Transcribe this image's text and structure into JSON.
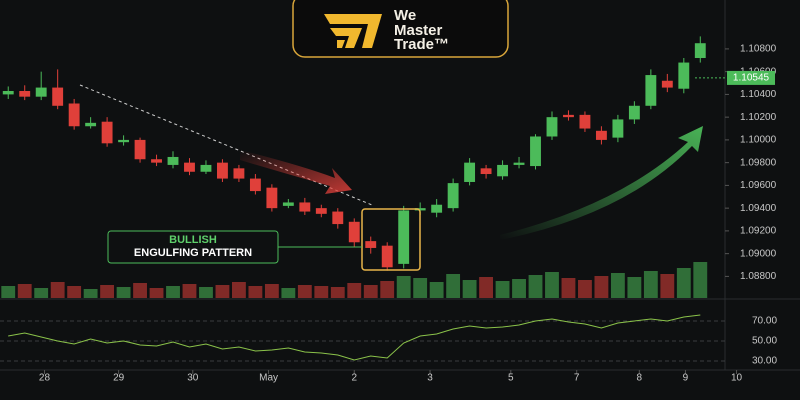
{
  "logo": {
    "lines": [
      "We",
      "Master",
      "Trade™"
    ]
  },
  "annotation": {
    "lines": [
      "BULLISH",
      "ENGULFING PATTERN"
    ]
  },
  "chart_data": {
    "type": "candlestick",
    "up_color": "#4cbb5a",
    "down_color": "#e0403a",
    "series": [
      {
        "name": "open",
        "values": [
          1.104,
          1.1043,
          1.1038,
          1.1046,
          1.1032,
          1.1012,
          1.1016,
          1.0998,
          1.1,
          1.0983,
          1.0978,
          1.098,
          1.0972,
          1.098,
          1.0975,
          1.0966,
          1.0958,
          1.0942,
          1.0945,
          1.094,
          1.0937,
          1.0928,
          1.0911,
          1.0907,
          1.0891,
          1.0938,
          1.0936,
          1.094,
          1.0963,
          1.0975,
          1.0968,
          1.0978,
          1.0977,
          1.1003,
          1.1022,
          1.1022,
          1.1008,
          1.1002,
          1.1018,
          1.103,
          1.1052,
          1.1045,
          1.1072
        ]
      },
      {
        "name": "high",
        "values": [
          1.1047,
          1.1048,
          1.106,
          1.1062,
          1.1036,
          1.102,
          1.102,
          1.1004,
          1.1002,
          1.0987,
          1.099,
          1.0984,
          1.0982,
          1.0983,
          1.0978,
          1.097,
          1.0961,
          1.0948,
          1.0949,
          1.0943,
          1.094,
          1.0931,
          1.0915,
          1.091,
          1.0942,
          1.0945,
          1.0948,
          1.0966,
          1.0984,
          1.0978,
          1.0982,
          1.0985,
          1.1005,
          1.1025,
          1.1026,
          1.1025,
          1.1012,
          1.1022,
          1.1034,
          1.1062,
          1.1058,
          1.1072,
          1.1091
        ]
      },
      {
        "name": "low",
        "values": [
          1.1036,
          1.1035,
          1.1035,
          1.1027,
          1.1009,
          1.101,
          1.0994,
          1.0995,
          1.098,
          1.0977,
          1.0975,
          1.0969,
          1.097,
          1.0963,
          1.0963,
          1.0952,
          1.0937,
          1.094,
          1.0934,
          1.0932,
          1.0922,
          1.0906,
          1.09,
          1.0885,
          1.0887,
          1.0934,
          1.0932,
          1.0937,
          1.096,
          1.0966,
          1.0965,
          1.0975,
          1.0974,
          1.1,
          1.1017,
          1.1007,
          1.0996,
          1.0998,
          1.1014,
          1.1027,
          1.1042,
          1.1041,
          1.1068
        ]
      },
      {
        "name": "close",
        "values": [
          1.1043,
          1.1038,
          1.1046,
          1.103,
          1.1012,
          1.1015,
          1.0997,
          1.1,
          1.0983,
          1.098,
          1.0985,
          1.0972,
          1.0978,
          1.0966,
          1.0966,
          1.0955,
          1.094,
          1.0945,
          1.0937,
          1.0935,
          1.0926,
          1.091,
          1.0905,
          1.0888,
          1.0938,
          1.094,
          1.0943,
          1.0962,
          1.098,
          1.097,
          1.0978,
          1.098,
          1.1003,
          1.102,
          1.102,
          1.101,
          1.1,
          1.1018,
          1.103,
          1.1057,
          1.1046,
          1.1068,
          1.1085
        ]
      }
    ],
    "volume": [
      12,
      14,
      10,
      16,
      12,
      9,
      13,
      11,
      15,
      10,
      12,
      14,
      11,
      13,
      16,
      12,
      14,
      10,
      13,
      12,
      11,
      15,
      13,
      17,
      22,
      20,
      16,
      24,
      18,
      21,
      17,
      19,
      23,
      26,
      20,
      18,
      22,
      25,
      21,
      27,
      24,
      30,
      36
    ],
    "ylim": [
      1.0861,
      1.1123
    ],
    "yticks": [
      {
        "value": 1.108,
        "label": "1.10800"
      },
      {
        "value": 1.106,
        "label": "1.10600"
      },
      {
        "value": 1.104,
        "label": "1.10400"
      },
      {
        "value": 1.102,
        "label": "1.10200"
      },
      {
        "value": 1.1,
        "label": "1.10000"
      },
      {
        "value": 1.098,
        "label": "1.09800"
      },
      {
        "value": 1.096,
        "label": "1.09600"
      },
      {
        "value": 1.094,
        "label": "1.09400"
      },
      {
        "value": 1.092,
        "label": "1.09200"
      },
      {
        "value": 1.09,
        "label": "1.09000"
      },
      {
        "value": 1.088,
        "label": "1.08800"
      }
    ],
    "last_price": 1.10545,
    "xlim": [
      -0.5,
      43.5
    ],
    "xticks": [
      {
        "value": 2.2,
        "label": "28"
      },
      {
        "value": 6.7,
        "label": "29"
      },
      {
        "value": 11.2,
        "label": "30"
      },
      {
        "value": 15.8,
        "label": "May"
      },
      {
        "value": 21,
        "label": "2"
      },
      {
        "value": 25.6,
        "label": "3"
      },
      {
        "value": 30.5,
        "label": "5"
      },
      {
        "value": 34.5,
        "label": "7"
      },
      {
        "value": 38.3,
        "label": "8"
      },
      {
        "value": 41.1,
        "label": "9"
      },
      {
        "value": 44.2,
        "label": "10"
      }
    ],
    "oscillator": {
      "color": "#8bc34a",
      "values": [
        55,
        58,
        54,
        50,
        47,
        52,
        48,
        50,
        46,
        45,
        49,
        44,
        47,
        42,
        44,
        40,
        41,
        43,
        39,
        38,
        36,
        31,
        35,
        33,
        48,
        55,
        57,
        62,
        65,
        63,
        64,
        66,
        70,
        72,
        69,
        67,
        63,
        68,
        70,
        72,
        70,
        74,
        76
      ],
      "ylim": [
        22,
        88
      ],
      "yticks": [
        {
          "value": 70,
          "label": "70.00"
        },
        {
          "value": 50,
          "label": "50.00"
        },
        {
          "value": 30,
          "label": "30.00"
        }
      ]
    }
  }
}
